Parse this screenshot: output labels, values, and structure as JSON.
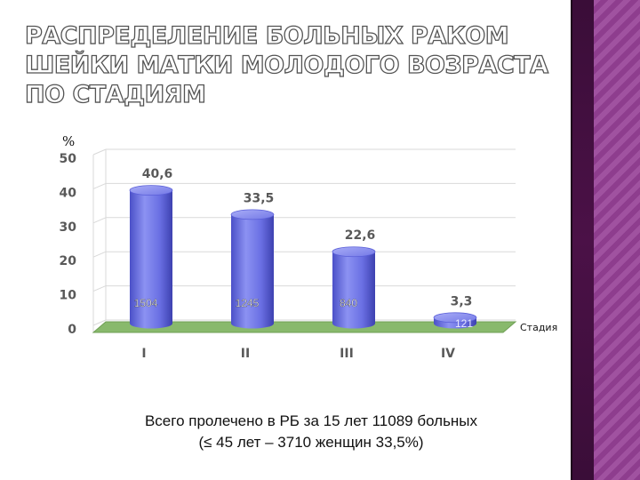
{
  "title": "Распределение больных раком шейки матки молодого возраста по стадиям",
  "footnote": {
    "line1": "Всего пролечено в РБ за 15 лет 11089 больных",
    "line2": "(≤ 45 лет – 3710 женщин 33,5%)"
  },
  "colors": {
    "bar": "#6a6fe3",
    "floor": "#88b96c",
    "label": "#595959",
    "sidebar": "#8e3d8e"
  },
  "chart_data": {
    "type": "bar",
    "ylabel": "%",
    "xlabel": "Стадия",
    "ylim": [
      0,
      50
    ],
    "yticks": [
      "0",
      "10",
      "20",
      "30",
      "40",
      "50"
    ],
    "categories": [
      "I",
      "II",
      "III",
      "IV"
    ],
    "values": [
      40.6,
      33.5,
      22.6,
      3.3
    ],
    "value_labels": [
      "40,6",
      "33,5",
      "22,6",
      "3,3"
    ],
    "counts": [
      "1504",
      "1245",
      "840",
      "121"
    ],
    "grid": true,
    "style": "3d-cylinder"
  }
}
